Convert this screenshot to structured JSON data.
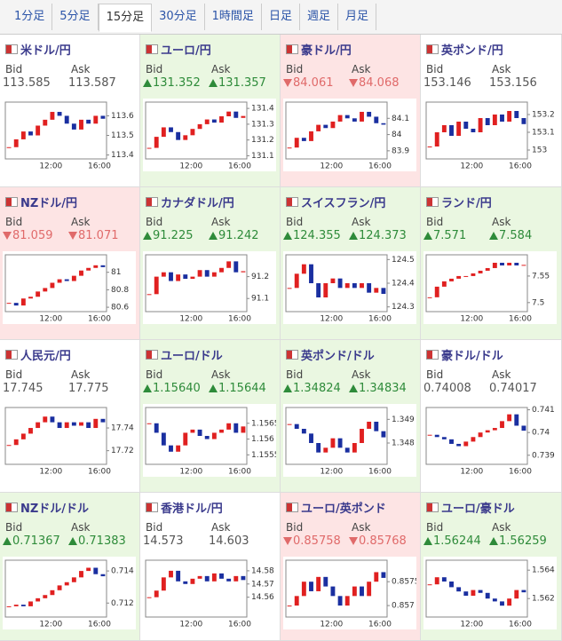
{
  "tabs": [
    {
      "label": "1分足"
    },
    {
      "label": "5分足"
    },
    {
      "label": "15分足",
      "selected": true
    },
    {
      "label": "30分足"
    },
    {
      "label": "1時間足"
    },
    {
      "label": "日足"
    },
    {
      "label": "週足"
    },
    {
      "label": "月足"
    }
  ],
  "panels": [
    {
      "pair": "米ドル/円",
      "bid_label": "Bid",
      "ask_label": "Ask",
      "bid": "113.585",
      "ask": "113.587",
      "chart": {
        "ylim": [
          113.38,
          113.67
        ],
        "yticks": [
          113.6,
          113.5,
          113.4
        ],
        "xticks": [
          "12:00",
          "16:00"
        ],
        "closes": [
          113.44,
          113.48,
          113.52,
          113.5,
          113.55,
          113.58,
          113.62,
          113.6,
          113.56,
          113.53,
          113.58,
          113.56,
          113.6,
          113.585
        ]
      }
    },
    {
      "pair": "ユーロ/円",
      "bid_label": "Bid",
      "ask_label": "Ask",
      "bid": "131.352",
      "ask": "131.357",
      "trend": "up",
      "chart": {
        "ylim": [
          131.08,
          131.44
        ],
        "yticks": [
          131.4,
          131.3,
          131.2,
          131.1
        ],
        "xticks": [
          "12:00",
          "16:00"
        ],
        "closes": [
          131.15,
          131.22,
          131.28,
          131.25,
          131.2,
          131.23,
          131.27,
          131.3,
          131.33,
          131.31,
          131.35,
          131.38,
          131.34,
          131.352
        ]
      }
    },
    {
      "pair": "豪ドル/円",
      "bid_label": "Bid",
      "ask_label": "Ask",
      "bid": "84.061",
      "ask": "84.068",
      "trend": "down",
      "chart": {
        "ylim": [
          83.85,
          84.2
        ],
        "yticks": [
          84.1,
          84,
          83.9
        ],
        "xticks": [
          "12:00",
          "16:00"
        ],
        "closes": [
          83.92,
          83.98,
          83.96,
          84.02,
          84.06,
          84.04,
          84.08,
          84.12,
          84.1,
          84.08,
          84.14,
          84.11,
          84.07,
          84.061
        ]
      }
    },
    {
      "pair": "英ポンド/円",
      "bid_label": "Bid",
      "ask_label": "Ask",
      "bid": "153.146",
      "ask": "153.156",
      "chart": {
        "ylim": [
          152.95,
          153.27
        ],
        "yticks": [
          153.2,
          153.1,
          153
        ],
        "xticks": [
          "12:00",
          "16:00"
        ],
        "closes": [
          153.02,
          153.1,
          153.14,
          153.08,
          153.16,
          153.12,
          153.1,
          153.18,
          153.14,
          153.2,
          153.16,
          153.22,
          153.18,
          153.146
        ]
      }
    },
    {
      "pair": "NZドル/円",
      "bid_label": "Bid",
      "ask_label": "Ask",
      "bid": "81.059",
      "ask": "81.071",
      "trend": "down",
      "chart": {
        "ylim": [
          80.55,
          81.2
        ],
        "yticks": [
          81,
          80.8,
          80.6
        ],
        "xticks": [
          "12:00",
          "16:00"
        ],
        "closes": [
          80.65,
          80.62,
          80.7,
          80.72,
          80.78,
          80.82,
          80.88,
          80.92,
          80.9,
          80.96,
          81.02,
          81.05,
          81.08,
          81.059
        ]
      }
    },
    {
      "pair": "カナダドル/円",
      "bid_label": "Bid",
      "ask_label": "Ask",
      "bid": "91.225",
      "ask": "91.242",
      "trend": "up",
      "chart": {
        "ylim": [
          91.04,
          91.3
        ],
        "yticks": [
          91.2,
          91.1
        ],
        "xticks": [
          "12:00",
          "16:00"
        ],
        "closes": [
          91.12,
          91.2,
          91.22,
          91.18,
          91.21,
          91.19,
          91.2,
          91.23,
          91.2,
          91.22,
          91.24,
          91.27,
          91.22,
          91.225
        ]
      }
    },
    {
      "pair": "スイスフラン/円",
      "bid_label": "Bid",
      "ask_label": "Ask",
      "bid": "124.355",
      "ask": "124.373",
      "trend": "up",
      "chart": {
        "ylim": [
          124.28,
          124.52
        ],
        "yticks": [
          124.5,
          124.4,
          124.3
        ],
        "xticks": [
          "12:00",
          "16:00"
        ],
        "closes": [
          124.38,
          124.44,
          124.48,
          124.4,
          124.34,
          124.4,
          124.42,
          124.38,
          124.4,
          124.38,
          124.4,
          124.36,
          124.38,
          124.355
        ]
      }
    },
    {
      "pair": "ランド/円",
      "bid_label": "Bid",
      "ask_label": "Ask",
      "bid": "7.571",
      "ask": "7.584",
      "trend": "up",
      "chart": {
        "ylim": [
          7.483,
          7.59
        ],
        "yticks": [
          7.55,
          7.5
        ],
        "xticks": [
          "12:00",
          "16:00"
        ],
        "closes": [
          7.51,
          7.53,
          7.54,
          7.545,
          7.55,
          7.55,
          7.555,
          7.56,
          7.565,
          7.575,
          7.57,
          7.575,
          7.57,
          7.571
        ]
      }
    },
    {
      "pair": "人民元/円",
      "bid_label": "Bid",
      "ask_label": "Ask",
      "bid": "17.745",
      "ask": "17.775",
      "chart": {
        "ylim": [
          17.708,
          17.758
        ],
        "yticks": [
          17.74,
          17.72
        ],
        "xticks": [
          "12:00",
          "16:00"
        ],
        "closes": [
          17.725,
          17.73,
          17.735,
          17.74,
          17.745,
          17.75,
          17.745,
          17.74,
          17.745,
          17.742,
          17.745,
          17.74,
          17.748,
          17.745
        ]
      }
    },
    {
      "pair": "ユーロ/ドル",
      "bid_label": "Bid",
      "ask_label": "Ask",
      "bid": "1.15640",
      "ask": "1.15644",
      "trend": "up",
      "chart": {
        "ylim": [
          1.1552,
          1.157
        ],
        "yticks": [
          1.1565,
          1.156,
          1.1555
        ],
        "xticks": [
          "12:00",
          "16:00"
        ],
        "closes": [
          1.1565,
          1.1562,
          1.1558,
          1.1556,
          1.1558,
          1.1562,
          1.1563,
          1.1561,
          1.156,
          1.1562,
          1.1563,
          1.1565,
          1.1562,
          1.1564
        ]
      }
    },
    {
      "pair": "英ポンド/ドル",
      "bid_label": "Bid",
      "ask_label": "Ask",
      "bid": "1.34824",
      "ask": "1.34834",
      "trend": "up",
      "chart": {
        "ylim": [
          1.3471,
          1.3495
        ],
        "yticks": [
          1.349,
          1.348
        ],
        "xticks": [
          "12:00",
          "16:00"
        ],
        "closes": [
          1.3488,
          1.3486,
          1.3484,
          1.348,
          1.3476,
          1.3478,
          1.3482,
          1.3478,
          1.3476,
          1.348,
          1.3486,
          1.3489,
          1.3485,
          1.34824
        ]
      }
    },
    {
      "pair": "豪ドル/ドル",
      "bid_label": "Bid",
      "ask_label": "Ask",
      "bid": "0.74008",
      "ask": "0.74017",
      "chart": {
        "ylim": [
          0.7386,
          0.7411
        ],
        "yticks": [
          0.741,
          0.74,
          0.739
        ],
        "xticks": [
          "12:00",
          "16:00"
        ],
        "closes": [
          0.7399,
          0.7398,
          0.7397,
          0.7395,
          0.7394,
          0.7396,
          0.7398,
          0.74,
          0.7401,
          0.7402,
          0.7405,
          0.7408,
          0.7403,
          0.74008
        ]
      }
    },
    {
      "pair": "NZドル/ドル",
      "bid_label": "Bid",
      "ask_label": "Ask",
      "bid": "0.71367",
      "ask": "0.71383",
      "trend": "up",
      "chart": {
        "ylim": [
          0.71113,
          0.71467
        ],
        "yticks": [
          0.714,
          0.712
        ],
        "xticks": [
          "12:00",
          "16:00"
        ],
        "closes": [
          0.7118,
          0.7119,
          0.7118,
          0.7121,
          0.7123,
          0.7125,
          0.7128,
          0.7131,
          0.7133,
          0.7136,
          0.714,
          0.7142,
          0.7138,
          0.71367
        ]
      }
    },
    {
      "pair": "香港ドル/円",
      "bid_label": "Bid",
      "ask_label": "Ask",
      "bid": "14.573",
      "ask": "14.603",
      "chart": {
        "ylim": [
          14.545,
          14.588
        ],
        "yticks": [
          14.58,
          14.57,
          14.56
        ],
        "xticks": [
          "12:00",
          "16:00"
        ],
        "closes": [
          14.56,
          14.565,
          14.575,
          14.58,
          14.572,
          14.57,
          14.574,
          14.576,
          14.572,
          14.578,
          14.574,
          14.572,
          14.576,
          14.573
        ]
      }
    },
    {
      "pair": "ユーロ/英ポンド",
      "bid_label": "Bid",
      "ask_label": "Ask",
      "bid": "0.85758",
      "ask": "0.85768",
      "trend": "down",
      "chart": {
        "ylim": [
          0.85676,
          0.85795
        ],
        "yticks": [
          0.8575,
          0.857
        ],
        "xticks": [
          "12:00",
          "16:00"
        ],
        "closes": [
          0.857,
          0.8572,
          0.8575,
          0.8573,
          0.8576,
          0.8574,
          0.8572,
          0.857,
          0.8572,
          0.8574,
          0.8572,
          0.8575,
          0.8577,
          0.85758
        ]
      }
    },
    {
      "pair": "ユーロ/豪ドル",
      "bid_label": "Bid",
      "ask_label": "Ask",
      "bid": "1.56244",
      "ask": "1.56259",
      "trend": "up",
      "chart": {
        "ylim": [
          1.5607,
          1.5647
        ],
        "yticks": [
          1.564,
          1.562
        ],
        "xticks": [
          "12:00",
          "16:00"
        ],
        "closes": [
          1.563,
          1.5635,
          1.5632,
          1.5628,
          1.5625,
          1.5622,
          1.5626,
          1.5624,
          1.562,
          1.5618,
          1.5615,
          1.562,
          1.5626,
          1.56244
        ]
      }
    }
  ]
}
